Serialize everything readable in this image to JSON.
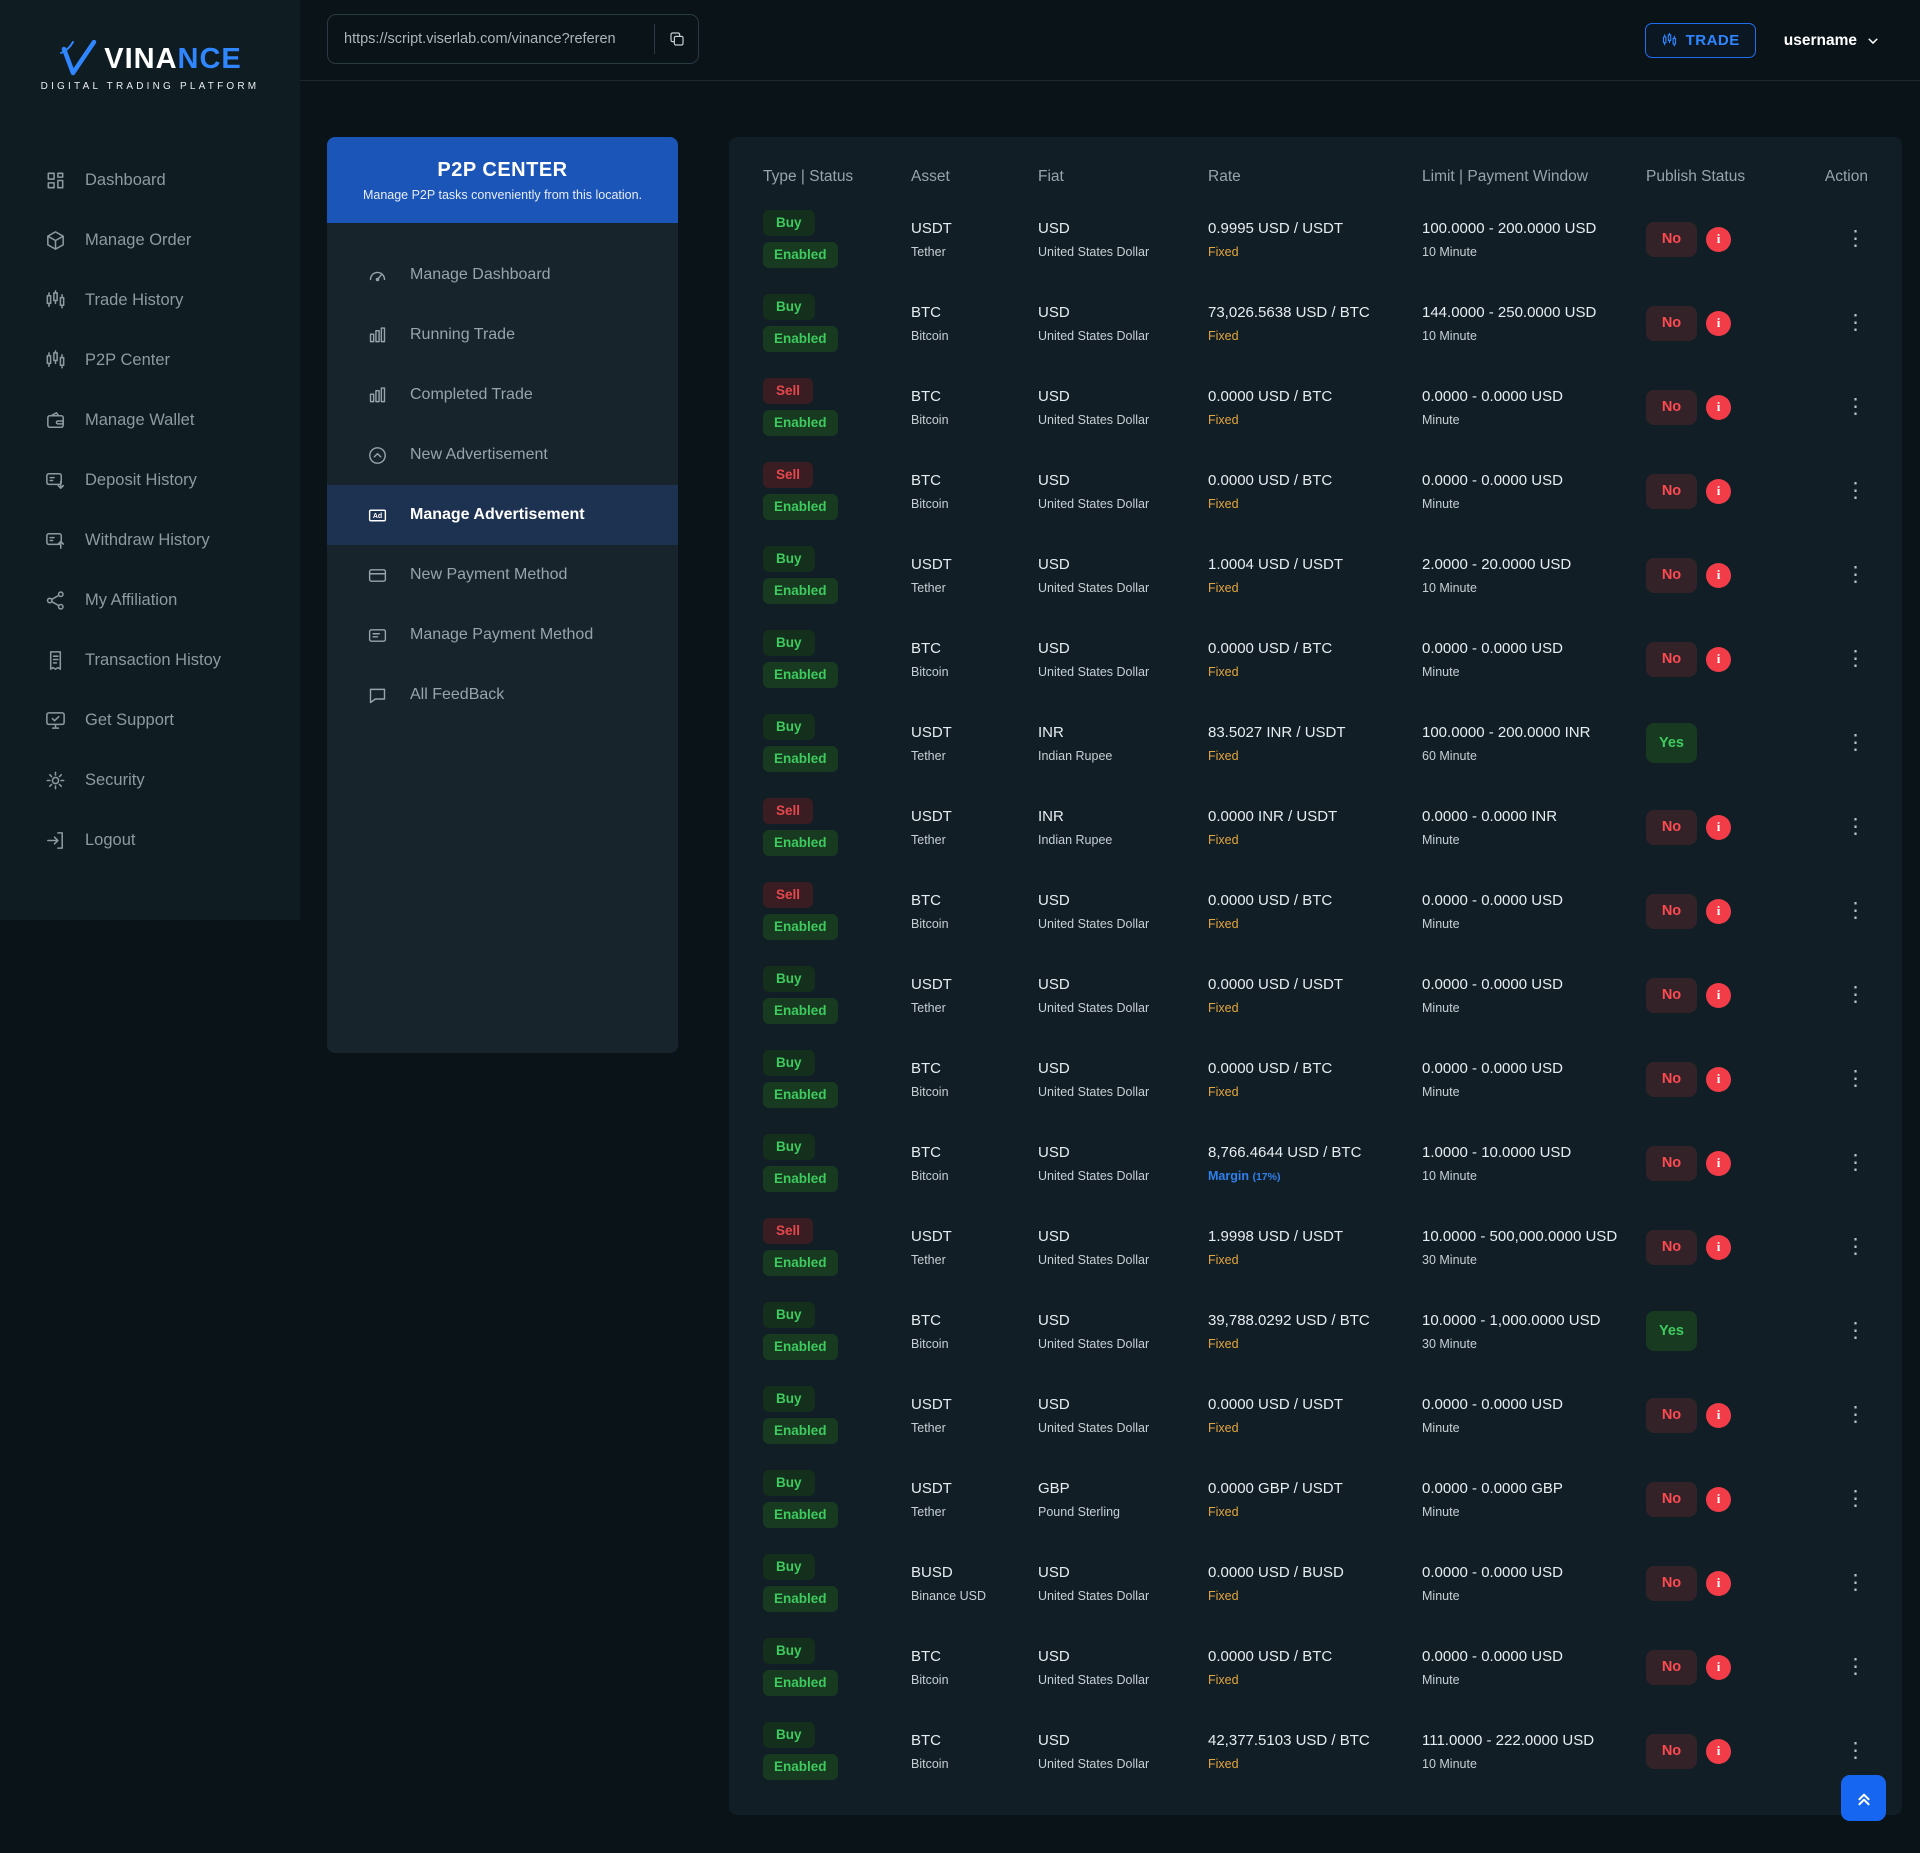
{
  "brand": {
    "name_primary": "VINA",
    "name_accent": "NCE",
    "tagline": "DIGITAL TRADING PLATFORM"
  },
  "topbar": {
    "url_value": "https://script.viserlab.com/vinance?referen",
    "copy_icon": "copy-icon",
    "trade_label": "TRADE",
    "username": "username",
    "user_chevron_icon": "chevron-down-icon"
  },
  "sidebar": {
    "items": [
      {
        "label": "Dashboard",
        "icon": "grid"
      },
      {
        "label": "Manage Order",
        "icon": "cube"
      },
      {
        "label": "Trade History",
        "icon": "candles"
      },
      {
        "label": "P2P Center",
        "icon": "candles"
      },
      {
        "label": "Manage Wallet",
        "icon": "wallet"
      },
      {
        "label": "Deposit History",
        "icon": "deposit"
      },
      {
        "label": "Withdraw History",
        "icon": "withdraw"
      },
      {
        "label": "My Affiliation",
        "icon": "affiliate"
      },
      {
        "label": "Transaction Histoy",
        "icon": "receipt"
      },
      {
        "label": "Get Support",
        "icon": "support"
      },
      {
        "label": "Security",
        "icon": "security"
      },
      {
        "label": "Logout",
        "icon": "logout"
      }
    ]
  },
  "p2p": {
    "title": "P2P CENTER",
    "subtitle": "Manage P2P tasks conveniently from this location.",
    "items": [
      {
        "label": "Manage Dashboard",
        "icon": "speedo",
        "active": false
      },
      {
        "label": "Running Trade",
        "icon": "bars",
        "active": false
      },
      {
        "label": "Completed Trade",
        "icon": "bars",
        "active": false
      },
      {
        "label": "New Advertisement",
        "icon": "arrow-circle",
        "active": false
      },
      {
        "label": "Manage Advertisement",
        "icon": "ad",
        "active": true
      },
      {
        "label": "New Payment Method",
        "icon": "card",
        "active": false
      },
      {
        "label": "Manage Payment Method",
        "icon": "card-lines",
        "active": false
      },
      {
        "label": "All FeedBack",
        "icon": "chat",
        "active": false
      }
    ]
  },
  "table": {
    "headers": [
      "Type | Status",
      "Asset",
      "Fiat",
      "Rate",
      "Limit | Payment Window",
      "Publish Status",
      "Action"
    ],
    "rows": [
      {
        "type": "Buy",
        "status": "Enabled",
        "asset": "USDT",
        "asset_name": "Tether",
        "fiat": "USD",
        "fiat_name": "United States Dollar",
        "rate": "0.9995 USD / USDT",
        "rate_mode": "Fixed",
        "rate_extra": "",
        "limit": "100.0000 - 200.0000 USD",
        "window": "10 Minute",
        "publish": "No",
        "info": true
      },
      {
        "type": "Buy",
        "status": "Enabled",
        "asset": "BTC",
        "asset_name": "Bitcoin",
        "fiat": "USD",
        "fiat_name": "United States Dollar",
        "rate": "73,026.5638 USD / BTC",
        "rate_mode": "Fixed",
        "rate_extra": "",
        "limit": "144.0000 - 250.0000 USD",
        "window": "10 Minute",
        "publish": "No",
        "info": true
      },
      {
        "type": "Sell",
        "status": "Enabled",
        "asset": "BTC",
        "asset_name": "Bitcoin",
        "fiat": "USD",
        "fiat_name": "United States Dollar",
        "rate": "0.0000 USD / BTC",
        "rate_mode": "Fixed",
        "rate_extra": "",
        "limit": "0.0000 - 0.0000 USD",
        "window": "Minute",
        "publish": "No",
        "info": true
      },
      {
        "type": "Sell",
        "status": "Enabled",
        "asset": "BTC",
        "asset_name": "Bitcoin",
        "fiat": "USD",
        "fiat_name": "United States Dollar",
        "rate": "0.0000 USD / BTC",
        "rate_mode": "Fixed",
        "rate_extra": "",
        "limit": "0.0000 - 0.0000 USD",
        "window": "Minute",
        "publish": "No",
        "info": true
      },
      {
        "type": "Buy",
        "status": "Enabled",
        "asset": "USDT",
        "asset_name": "Tether",
        "fiat": "USD",
        "fiat_name": "United States Dollar",
        "rate": "1.0004 USD / USDT",
        "rate_mode": "Fixed",
        "rate_extra": "",
        "limit": "2.0000 - 20.0000 USD",
        "window": "10 Minute",
        "publish": "No",
        "info": true
      },
      {
        "type": "Buy",
        "status": "Enabled",
        "asset": "BTC",
        "asset_name": "Bitcoin",
        "fiat": "USD",
        "fiat_name": "United States Dollar",
        "rate": "0.0000 USD / BTC",
        "rate_mode": "Fixed",
        "rate_extra": "",
        "limit": "0.0000 - 0.0000 USD",
        "window": "Minute",
        "publish": "No",
        "info": true
      },
      {
        "type": "Buy",
        "status": "Enabled",
        "asset": "USDT",
        "asset_name": "Tether",
        "fiat": "INR",
        "fiat_name": "Indian Rupee",
        "rate": "83.5027 INR / USDT",
        "rate_mode": "Fixed",
        "rate_extra": "",
        "limit": "100.0000 - 200.0000 INR",
        "window": "60 Minute",
        "publish": "Yes",
        "info": false
      },
      {
        "type": "Sell",
        "status": "Enabled",
        "asset": "USDT",
        "asset_name": "Tether",
        "fiat": "INR",
        "fiat_name": "Indian Rupee",
        "rate": "0.0000 INR / USDT",
        "rate_mode": "Fixed",
        "rate_extra": "",
        "limit": "0.0000 - 0.0000 INR",
        "window": "Minute",
        "publish": "No",
        "info": true
      },
      {
        "type": "Sell",
        "status": "Enabled",
        "asset": "BTC",
        "asset_name": "Bitcoin",
        "fiat": "USD",
        "fiat_name": "United States Dollar",
        "rate": "0.0000 USD / BTC",
        "rate_mode": "Fixed",
        "rate_extra": "",
        "limit": "0.0000 - 0.0000 USD",
        "window": "Minute",
        "publish": "No",
        "info": true
      },
      {
        "type": "Buy",
        "status": "Enabled",
        "asset": "USDT",
        "asset_name": "Tether",
        "fiat": "USD",
        "fiat_name": "United States Dollar",
        "rate": "0.0000 USD / USDT",
        "rate_mode": "Fixed",
        "rate_extra": "",
        "limit": "0.0000 - 0.0000 USD",
        "window": "Minute",
        "publish": "No",
        "info": true
      },
      {
        "type": "Buy",
        "status": "Enabled",
        "asset": "BTC",
        "asset_name": "Bitcoin",
        "fiat": "USD",
        "fiat_name": "United States Dollar",
        "rate": "0.0000 USD / BTC",
        "rate_mode": "Fixed",
        "rate_extra": "",
        "limit": "0.0000 - 0.0000 USD",
        "window": "Minute",
        "publish": "No",
        "info": true
      },
      {
        "type": "Buy",
        "status": "Enabled",
        "asset": "BTC",
        "asset_name": "Bitcoin",
        "fiat": "USD",
        "fiat_name": "United States Dollar",
        "rate": "8,766.4644 USD / BTC",
        "rate_mode": "Margin",
        "rate_extra": "(17%)",
        "limit": "1.0000 - 10.0000 USD",
        "window": "10 Minute",
        "publish": "No",
        "info": true
      },
      {
        "type": "Sell",
        "status": "Enabled",
        "asset": "USDT",
        "asset_name": "Tether",
        "fiat": "USD",
        "fiat_name": "United States Dollar",
        "rate": "1.9998 USD / USDT",
        "rate_mode": "Fixed",
        "rate_extra": "",
        "limit": "10.0000 - 500,000.0000 USD",
        "window": "30 Minute",
        "publish": "No",
        "info": true
      },
      {
        "type": "Buy",
        "status": "Enabled",
        "asset": "BTC",
        "asset_name": "Bitcoin",
        "fiat": "USD",
        "fiat_name": "United States Dollar",
        "rate": "39,788.0292 USD / BTC",
        "rate_mode": "Fixed",
        "rate_extra": "",
        "limit": "10.0000 - 1,000.0000 USD",
        "window": "30 Minute",
        "publish": "Yes",
        "info": false
      },
      {
        "type": "Buy",
        "status": "Enabled",
        "asset": "USDT",
        "asset_name": "Tether",
        "fiat": "USD",
        "fiat_name": "United States Dollar",
        "rate": "0.0000 USD / USDT",
        "rate_mode": "Fixed",
        "rate_extra": "",
        "limit": "0.0000 - 0.0000 USD",
        "window": "Minute",
        "publish": "No",
        "info": true
      },
      {
        "type": "Buy",
        "status": "Enabled",
        "asset": "USDT",
        "asset_name": "Tether",
        "fiat": "GBP",
        "fiat_name": "Pound Sterling",
        "rate": "0.0000 GBP / USDT",
        "rate_mode": "Fixed",
        "rate_extra": "",
        "limit": "0.0000 - 0.0000 GBP",
        "window": "Minute",
        "publish": "No",
        "info": true
      },
      {
        "type": "Buy",
        "status": "Enabled",
        "asset": "BUSD",
        "asset_name": "Binance USD",
        "fiat": "USD",
        "fiat_name": "United States Dollar",
        "rate": "0.0000 USD / BUSD",
        "rate_mode": "Fixed",
        "rate_extra": "",
        "limit": "0.0000 - 0.0000 USD",
        "window": "Minute",
        "publish": "No",
        "info": true
      },
      {
        "type": "Buy",
        "status": "Enabled",
        "asset": "BTC",
        "asset_name": "Bitcoin",
        "fiat": "USD",
        "fiat_name": "United States Dollar",
        "rate": "0.0000 USD / BTC",
        "rate_mode": "Fixed",
        "rate_extra": "",
        "limit": "0.0000 - 0.0000 USD",
        "window": "Minute",
        "publish": "No",
        "info": true
      },
      {
        "type": "Buy",
        "status": "Enabled",
        "asset": "BTC",
        "asset_name": "Bitcoin",
        "fiat": "USD",
        "fiat_name": "United States Dollar",
        "rate": "42,377.5103 USD / BTC",
        "rate_mode": "Fixed",
        "rate_extra": "",
        "limit": "111.0000 - 222.0000 USD",
        "window": "10 Minute",
        "publish": "No",
        "info": true
      }
    ]
  },
  "fab": {
    "icon": "chevrons-up-icon"
  },
  "colors": {
    "accent_blue": "#2f86ff",
    "panel_blue": "#1b55b8",
    "green": "#3ecb5e",
    "red": "#e5484d",
    "publish_red": "#ff4a52",
    "info_red": "#f23d49",
    "orange": "#e3a53f",
    "margin_blue": "#2f80ed"
  }
}
